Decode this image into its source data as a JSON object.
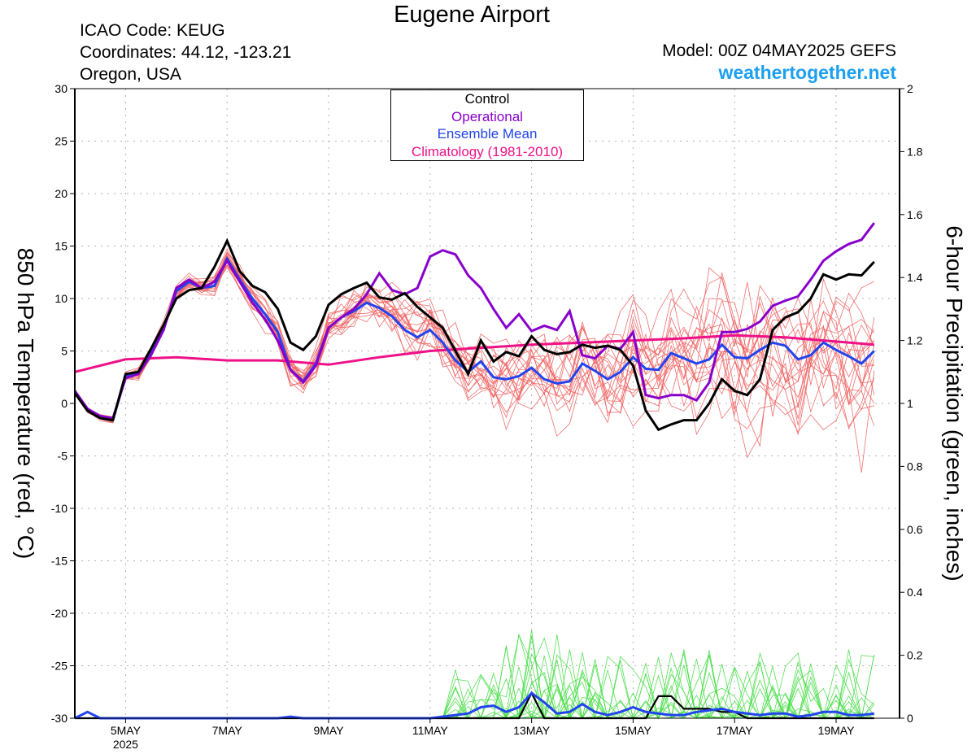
{
  "header": {
    "title": "Eugene Airport",
    "icao": "ICAO Code: KEUG",
    "coordinates": "Coordinates: 44.12, -123.21",
    "region": "Oregon, USA",
    "model": "Model: 00Z 04MAY2025 GEFS",
    "site": "weathertogether.net"
  },
  "legend": [
    {
      "label": "Control",
      "color": "#000000"
    },
    {
      "label": "Operational",
      "color": "#8800cc"
    },
    {
      "label": "Ensemble Mean",
      "color": "#2244ee"
    },
    {
      "label": "Climatology (1981-2010)",
      "color": "#ee1188"
    }
  ],
  "colors": {
    "members_temp": "#f06060",
    "members_precip": "#44dd44",
    "axis": "#000000",
    "grid": "#b0b0b0"
  },
  "chart_data": {
    "type": "line",
    "ylabel": "850 hPa Temperature (red, °C)",
    "y2label": "6-hour Precipitation (green, inches)",
    "ylim": [
      -30,
      30
    ],
    "y2lim": [
      0,
      2
    ],
    "yticks": [
      "30",
      "25",
      "20",
      "15",
      "10",
      "5",
      "0",
      "-5",
      "-10",
      "-15",
      "-20",
      "-25",
      "-30"
    ],
    "y2ticks": [
      "2",
      "1.8",
      "1.6",
      "1.4",
      "1.2",
      "1",
      "0.8",
      "0.6",
      "0.4",
      "0.2",
      "0"
    ],
    "xlim_hours": [
      0,
      390
    ],
    "xticks": [
      {
        "label": "5MAY",
        "sub": "2025",
        "hour": 24
      },
      {
        "label": "7MAY",
        "sub": "",
        "hour": 72
      },
      {
        "label": "9MAY",
        "sub": "",
        "hour": 120
      },
      {
        "label": "11MAY",
        "sub": "",
        "hour": 168
      },
      {
        "label": "13MAY",
        "sub": "",
        "hour": 216
      },
      {
        "label": "15MAY",
        "sub": "",
        "hour": 264
      },
      {
        "label": "17MAY",
        "sub": "",
        "hour": 312
      },
      {
        "label": "19MAY",
        "sub": "",
        "hour": 360
      }
    ],
    "grid": true,
    "temperature": {
      "control": {
        "name": "Control",
        "color": "#000000",
        "values": [
          [
            0,
            1
          ],
          [
            6,
            -0.7
          ],
          [
            12,
            -1.4
          ],
          [
            18,
            -1.6
          ],
          [
            24,
            2.8
          ],
          [
            30,
            3
          ],
          [
            36,
            5.2
          ],
          [
            42,
            7.5
          ],
          [
            48,
            10
          ],
          [
            54,
            10.8
          ],
          [
            60,
            11
          ],
          [
            66,
            13
          ],
          [
            72,
            15.5
          ],
          [
            78,
            12.6
          ],
          [
            84,
            11.2
          ],
          [
            90,
            10.6
          ],
          [
            96,
            9
          ],
          [
            102,
            5.8
          ],
          [
            108,
            5.1
          ],
          [
            114,
            6.4
          ],
          [
            120,
            9.4
          ],
          [
            126,
            10.4
          ],
          [
            132,
            11
          ],
          [
            138,
            11.5
          ],
          [
            144,
            10.1
          ],
          [
            150,
            9.9
          ],
          [
            156,
            10.5
          ],
          [
            162,
            9.2
          ],
          [
            168,
            8.2
          ],
          [
            174,
            7.2
          ],
          [
            180,
            5
          ],
          [
            186,
            2.8
          ],
          [
            192,
            6
          ],
          [
            198,
            4
          ],
          [
            204,
            4.9
          ],
          [
            210,
            4.5
          ],
          [
            216,
            6.4
          ],
          [
            222,
            5.1
          ],
          [
            228,
            4.7
          ],
          [
            234,
            4.9
          ],
          [
            240,
            5.6
          ],
          [
            246,
            5.3
          ],
          [
            252,
            5.5
          ],
          [
            258,
            5.1
          ],
          [
            264,
            3.6
          ],
          [
            270,
            -0.7
          ],
          [
            276,
            -2.5
          ],
          [
            282,
            -2
          ],
          [
            288,
            -1.6
          ],
          [
            294,
            -1.6
          ],
          [
            300,
            0
          ],
          [
            306,
            2.3
          ],
          [
            312,
            1.2
          ],
          [
            318,
            0.8
          ],
          [
            324,
            2.3
          ],
          [
            330,
            7
          ],
          [
            336,
            8.2
          ],
          [
            342,
            8.7
          ],
          [
            348,
            10
          ],
          [
            354,
            12.3
          ],
          [
            360,
            11.8
          ],
          [
            366,
            12.3
          ],
          [
            372,
            12.2
          ],
          [
            378,
            13.5
          ]
        ]
      },
      "operational": {
        "name": "Operational",
        "color": "#8800cc",
        "values": [
          [
            0,
            1.2
          ],
          [
            6,
            -0.5
          ],
          [
            12,
            -1.2
          ],
          [
            18,
            -1.4
          ],
          [
            24,
            2.4
          ],
          [
            30,
            2.8
          ],
          [
            36,
            4.6
          ],
          [
            42,
            7
          ],
          [
            48,
            11
          ],
          [
            54,
            11.8
          ],
          [
            60,
            11
          ],
          [
            66,
            11.6
          ],
          [
            72,
            13.6
          ],
          [
            78,
            11.6
          ],
          [
            84,
            9.6
          ],
          [
            90,
            8
          ],
          [
            96,
            6
          ],
          [
            102,
            3.2
          ],
          [
            108,
            2
          ],
          [
            114,
            3.6
          ],
          [
            120,
            7.2
          ],
          [
            126,
            8.2
          ],
          [
            132,
            9
          ],
          [
            138,
            10.4
          ],
          [
            144,
            12.4
          ],
          [
            150,
            10.8
          ],
          [
            156,
            10.4
          ],
          [
            162,
            11
          ],
          [
            168,
            14
          ],
          [
            174,
            14.6
          ],
          [
            180,
            14.2
          ],
          [
            186,
            12.2
          ],
          [
            192,
            11
          ],
          [
            198,
            9
          ],
          [
            204,
            7.2
          ],
          [
            210,
            8.5
          ],
          [
            216,
            6.9
          ],
          [
            222,
            7.4
          ],
          [
            228,
            7
          ],
          [
            234,
            8.8
          ],
          [
            240,
            4.6
          ],
          [
            246,
            4.3
          ],
          [
            252,
            5.5
          ],
          [
            258,
            5.2
          ],
          [
            264,
            6.8
          ],
          [
            270,
            0.8
          ],
          [
            276,
            0.5
          ],
          [
            282,
            0.8
          ],
          [
            288,
            0.8
          ],
          [
            294,
            0.3
          ],
          [
            300,
            2
          ],
          [
            306,
            6.8
          ],
          [
            312,
            6.8
          ],
          [
            318,
            7.1
          ],
          [
            324,
            7.8
          ],
          [
            330,
            9.3
          ],
          [
            336,
            9.8
          ],
          [
            342,
            10.2
          ],
          [
            348,
            11.8
          ],
          [
            354,
            13.6
          ],
          [
            360,
            14.5
          ],
          [
            366,
            15.2
          ],
          [
            372,
            15.6
          ],
          [
            378,
            17.2
          ]
        ]
      },
      "ensemble_mean": {
        "name": "Ensemble Mean",
        "color": "#2244ee",
        "values": [
          [
            0,
            1
          ],
          [
            6,
            -0.7
          ],
          [
            12,
            -1.4
          ],
          [
            18,
            -1.6
          ],
          [
            24,
            2.6
          ],
          [
            30,
            2.8
          ],
          [
            36,
            4.8
          ],
          [
            42,
            7.3
          ],
          [
            48,
            10.7
          ],
          [
            54,
            11.6
          ],
          [
            60,
            11
          ],
          [
            66,
            11.2
          ],
          [
            72,
            13.8
          ],
          [
            78,
            11.8
          ],
          [
            84,
            10
          ],
          [
            90,
            8.5
          ],
          [
            96,
            6.8
          ],
          [
            102,
            3.2
          ],
          [
            108,
            2.1
          ],
          [
            114,
            3.8
          ],
          [
            120,
            7.2
          ],
          [
            126,
            8.2
          ],
          [
            132,
            8.8
          ],
          [
            138,
            9.6
          ],
          [
            144,
            9.1
          ],
          [
            150,
            8.3
          ],
          [
            156,
            7
          ],
          [
            162,
            6.3
          ],
          [
            168,
            7
          ],
          [
            174,
            5.8
          ],
          [
            180,
            4.1
          ],
          [
            186,
            3
          ],
          [
            192,
            4
          ],
          [
            198,
            2.5
          ],
          [
            204,
            2.3
          ],
          [
            210,
            2.6
          ],
          [
            216,
            3.4
          ],
          [
            222,
            2.3
          ],
          [
            228,
            1.9
          ],
          [
            234,
            2.1
          ],
          [
            240,
            3.8
          ],
          [
            246,
            3.1
          ],
          [
            252,
            2.3
          ],
          [
            258,
            3
          ],
          [
            264,
            4.4
          ],
          [
            270,
            3.3
          ],
          [
            276,
            3.2
          ],
          [
            282,
            4.8
          ],
          [
            288,
            4.3
          ],
          [
            294,
            3.8
          ],
          [
            300,
            4.2
          ],
          [
            306,
            5.6
          ],
          [
            312,
            4.4
          ],
          [
            318,
            4.3
          ],
          [
            324,
            5.1
          ],
          [
            330,
            5.8
          ],
          [
            336,
            5.5
          ],
          [
            342,
            4.2
          ],
          [
            348,
            4.6
          ],
          [
            354,
            5.8
          ],
          [
            360,
            5.1
          ],
          [
            366,
            4.5
          ],
          [
            372,
            3.8
          ],
          [
            378,
            5
          ]
        ]
      },
      "climatology": {
        "name": "Climatology (1981-2010)",
        "color": "#ee1188",
        "values": [
          [
            0,
            3
          ],
          [
            24,
            4.2
          ],
          [
            48,
            4.4
          ],
          [
            72,
            4.1
          ],
          [
            96,
            4.1
          ],
          [
            120,
            3.7
          ],
          [
            144,
            4.4
          ],
          [
            168,
            5
          ],
          [
            192,
            5.3
          ],
          [
            216,
            5.6
          ],
          [
            240,
            5.8
          ],
          [
            264,
            6
          ],
          [
            288,
            6.2
          ],
          [
            312,
            6.5
          ],
          [
            336,
            6.3
          ],
          [
            360,
            5.9
          ],
          [
            378,
            5.6
          ]
        ]
      }
    },
    "precipitation": {
      "control": {
        "name": "Control",
        "color": "#000000",
        "values": [
          [
            0,
            0
          ],
          [
            6,
            0
          ],
          [
            18,
            0
          ],
          [
            210,
            0
          ],
          [
            216,
            0.08
          ],
          [
            222,
            0
          ],
          [
            228,
            0
          ],
          [
            270,
            0
          ],
          [
            276,
            0.07
          ],
          [
            282,
            0.07
          ],
          [
            288,
            0.03
          ],
          [
            300,
            0.03
          ],
          [
            306,
            0.02
          ],
          [
            312,
            0.02
          ],
          [
            318,
            0
          ],
          [
            378,
            0
          ]
        ]
      },
      "ensemble_mean": {
        "name": "Ensemble Mean",
        "color": "#2244ee",
        "values": [
          [
            0,
            0
          ],
          [
            6,
            0.02
          ],
          [
            12,
            0
          ],
          [
            96,
            0
          ],
          [
            102,
            0.005
          ],
          [
            108,
            0
          ],
          [
            168,
            0
          ],
          [
            174,
            0.005
          ],
          [
            180,
            0.01
          ],
          [
            186,
            0.015
          ],
          [
            192,
            0.035
          ],
          [
            198,
            0.04
          ],
          [
            204,
            0.02
          ],
          [
            210,
            0.035
          ],
          [
            216,
            0.08
          ],
          [
            222,
            0.05
          ],
          [
            228,
            0.015
          ],
          [
            234,
            0.02
          ],
          [
            240,
            0.045
          ],
          [
            246,
            0.02
          ],
          [
            252,
            0.01
          ],
          [
            258,
            0.02
          ],
          [
            264,
            0.035
          ],
          [
            270,
            0.02
          ],
          [
            276,
            0.015
          ],
          [
            282,
            0.01
          ],
          [
            288,
            0.01
          ],
          [
            294,
            0.02
          ],
          [
            300,
            0.025
          ],
          [
            306,
            0.03
          ],
          [
            312,
            0.02
          ],
          [
            318,
            0.015
          ],
          [
            324,
            0.01
          ],
          [
            330,
            0.015
          ],
          [
            336,
            0.015
          ],
          [
            342,
            0.005
          ],
          [
            348,
            0.01
          ],
          [
            354,
            0.02
          ],
          [
            360,
            0.02
          ],
          [
            366,
            0.01
          ],
          [
            372,
            0.01
          ],
          [
            378,
            0.015
          ]
        ]
      }
    }
  }
}
